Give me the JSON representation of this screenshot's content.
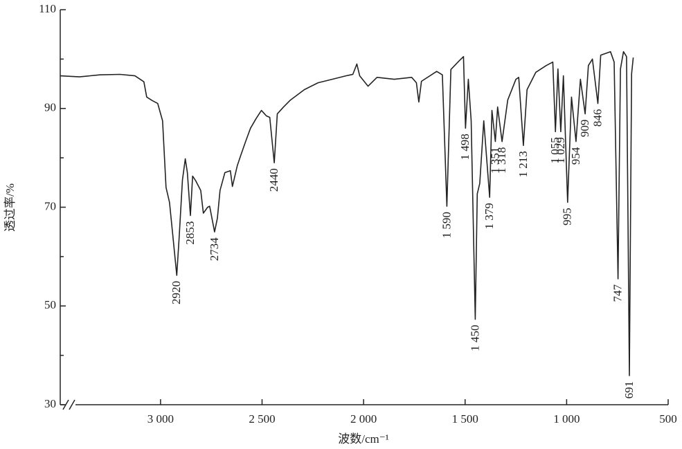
{
  "chart_data": {
    "type": "line",
    "xlabel": "波数/cm⁻¹",
    "ylabel": "透过率/%",
    "xlim": [
      3494,
      500
    ],
    "ylim": [
      30,
      110
    ],
    "xticks": [
      {
        "value": 3000,
        "label": "3 000"
      },
      {
        "value": 2500,
        "label": "2 500"
      },
      {
        "value": 2000,
        "label": "2 000"
      },
      {
        "value": 1500,
        "label": "1 500"
      },
      {
        "value": 1000,
        "label": "1 000"
      },
      500
    ],
    "yticks": [
      30,
      50,
      70,
      90,
      110
    ],
    "yminor_ticks": [
      40,
      60,
      80,
      100
    ],
    "color": "#222222",
    "x": [
      3494,
      3400,
      3300,
      3200,
      3126,
      3082,
      3068,
      3041,
      3014,
      2990,
      2973,
      2956,
      2939,
      2920,
      2908,
      2892,
      2878,
      2868,
      2853,
      2842,
      2826,
      2802,
      2789,
      2768,
      2758,
      2734,
      2720,
      2707,
      2683,
      2656,
      2646,
      2622,
      2605,
      2581,
      2557,
      2530,
      2503,
      2479,
      2462,
      2440,
      2425,
      2394,
      2360,
      2292,
      2224,
      2155,
      2087,
      2053,
      2033,
      2019,
      1978,
      1934,
      1849,
      1763,
      1740,
      1728,
      1715,
      1640,
      1612,
      1590,
      1570,
      1530,
      1508,
      1498,
      1484,
      1470,
      1450,
      1440,
      1428,
      1408,
      1379,
      1368,
      1351,
      1340,
      1318,
      1290,
      1250,
      1236,
      1213,
      1195,
      1152,
      1100,
      1068,
      1055,
      1043,
      1029,
      1016,
      995,
      976,
      954,
      932,
      909,
      893,
      873,
      846,
      832,
      784,
      766,
      747,
      735,
      720,
      705,
      691,
      680,
      672
    ],
    "values": [
      96.6,
      96.4,
      96.8,
      96.9,
      96.6,
      95.4,
      92.3,
      91.6,
      91,
      87.5,
      74,
      71,
      64,
      56.2,
      64,
      75.5,
      79.8,
      77,
      68.3,
      76.3,
      75.3,
      73.4,
      68.8,
      70,
      70.2,
      65,
      67.8,
      73.4,
      77,
      77.4,
      74.2,
      78.4,
      80.5,
      83.3,
      86,
      87.9,
      89.6,
      88.5,
      88.2,
      79,
      88.9,
      90.3,
      91.7,
      93.8,
      95.2,
      95.9,
      96.6,
      96.9,
      99,
      96.6,
      94.5,
      96.3,
      95.9,
      96.3,
      95.2,
      91.3,
      95.5,
      97.5,
      96.8,
      70.2,
      97.9,
      99.6,
      100.5,
      86,
      95.9,
      87.5,
      47.3,
      72.7,
      74.8,
      87.5,
      72,
      89.6,
      83.3,
      90.3,
      83.3,
      91.7,
      95.9,
      96.3,
      82.5,
      93.8,
      97.3,
      98.7,
      99.4,
      85.3,
      98,
      85.3,
      96.6,
      71,
      92.3,
      83.3,
      95.9,
      88.9,
      98.7,
      100,
      91,
      100.8,
      101.5,
      99.4,
      55.5,
      98,
      101.5,
      100.5,
      35.9,
      97,
      100.3
    ],
    "peaks": [
      {
        "label": "2920",
        "x": 2920
      },
      {
        "label": "2853",
        "x": 2853
      },
      {
        "label": "2734",
        "x": 2734
      },
      {
        "label": "2440",
        "x": 2440
      },
      {
        "label": "1 590",
        "x": 1590
      },
      {
        "label": "1 498",
        "x": 1498
      },
      {
        "label": "1 450",
        "x": 1450
      },
      {
        "label": "1 379",
        "x": 1379
      },
      {
        "label": "1 351",
        "x": 1351
      },
      {
        "label": "1 318",
        "x": 1318
      },
      {
        "label": "1 213",
        "x": 1213
      },
      {
        "label": "1 055",
        "x": 1055
      },
      {
        "label": "1 029",
        "x": 1029
      },
      {
        "label": "995",
        "x": 995
      },
      {
        "label": "954",
        "x": 954
      },
      {
        "label": "909",
        "x": 909
      },
      {
        "label": "846",
        "x": 846
      },
      {
        "label": "747",
        "x": 747
      },
      {
        "label": "691",
        "x": 691
      }
    ]
  }
}
